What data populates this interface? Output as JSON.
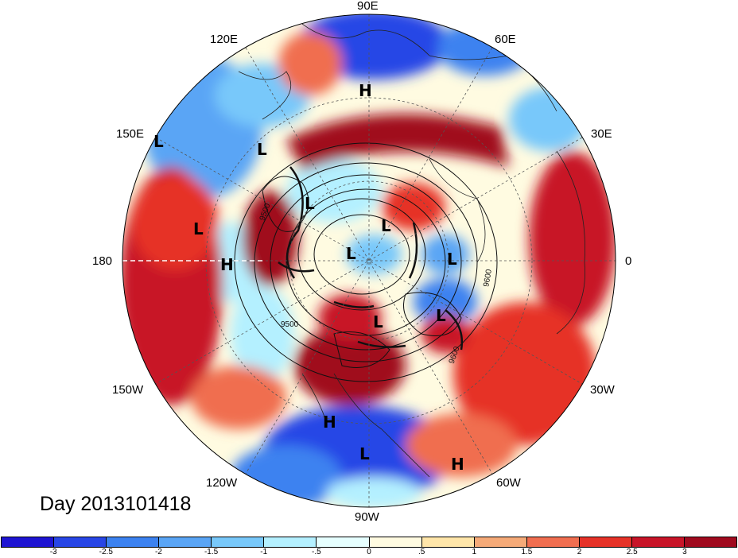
{
  "map": {
    "projection": "north-polar-stereographic",
    "longitude_labels": [
      "90E",
      "60E",
      "120E",
      "30E",
      "150E",
      "180",
      "0",
      "30W",
      "150W",
      "120W",
      "60W",
      "90W"
    ],
    "field_colorbar_range": [
      -3,
      3
    ],
    "contour_labels": [
      "9500",
      "9500",
      "9600",
      "9600"
    ],
    "pressure_centers": [
      "H",
      "L",
      "L",
      "L",
      "L",
      "H",
      "L",
      "L",
      "L",
      "L",
      "L",
      "H",
      "L",
      "H"
    ]
  },
  "title": "Day 2013101418",
  "colorbar": {
    "colors": [
      "#1e14d2",
      "#2846e6",
      "#3c82f0",
      "#5aa5f5",
      "#78c8fa",
      "#b4f0ff",
      "#e6ffff",
      "#fffbe1",
      "#ffe6aa",
      "#f5aa78",
      "#f06e50",
      "#e63228",
      "#c81428",
      "#a00a1e"
    ],
    "tick_labels": [
      "-3",
      "-2.5",
      "-2",
      "-1.5",
      "-1",
      "-.5",
      "0",
      ".5",
      "1",
      "1.5",
      "2",
      "2.5",
      "3"
    ]
  }
}
